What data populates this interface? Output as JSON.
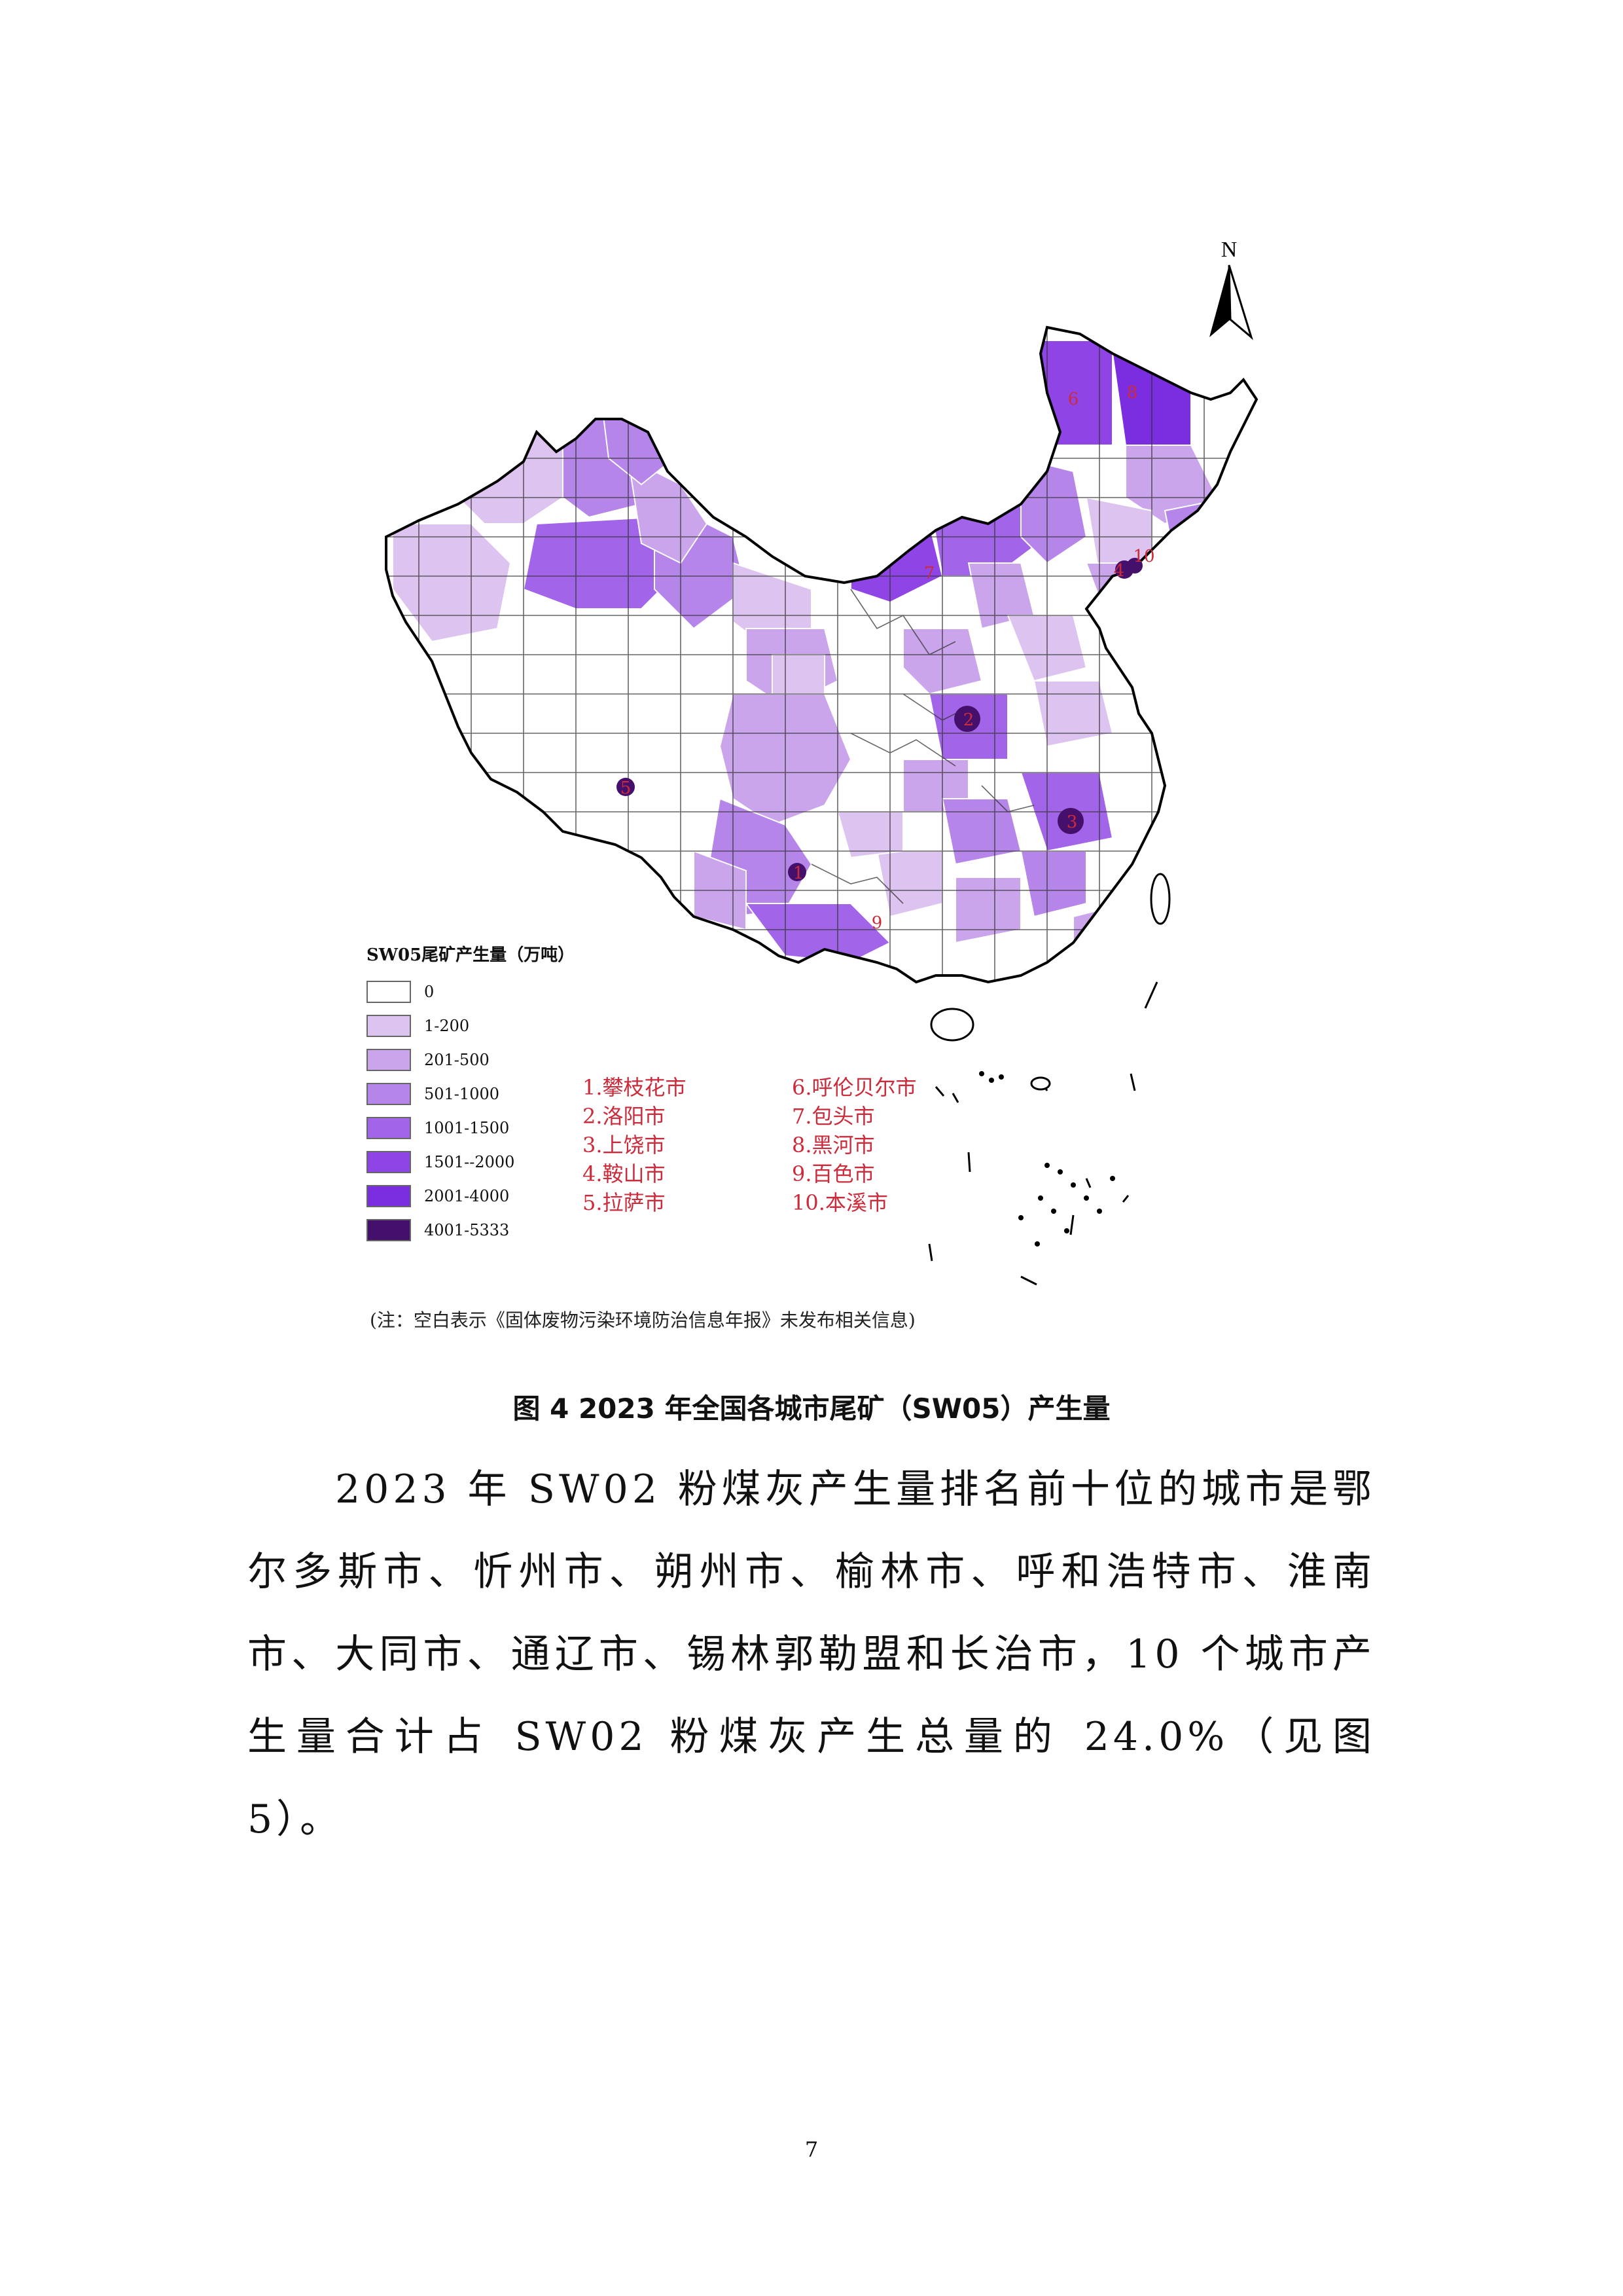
{
  "map": {
    "north_label": "N",
    "legend": {
      "title": "SW05尾矿产生量（万吨）",
      "items": [
        {
          "label": "0",
          "color": "#ffffff"
        },
        {
          "label": "1-200",
          "color": "#ddc3ef"
        },
        {
          "label": "201-500",
          "color": "#caa5ec"
        },
        {
          "label": "501-1000",
          "color": "#b585ea"
        },
        {
          "label": "1001-1500",
          "color": "#a264e8"
        },
        {
          "label": "1501--2000",
          "color": "#8f45e6"
        },
        {
          "label": "2001-4000",
          "color": "#7a2ee0"
        },
        {
          "label": "4001-5333",
          "color": "#44106b"
        }
      ]
    },
    "top_cities": [
      "1.攀枝花市",
      "6.呼伦贝尔市",
      "2.洛阳市",
      "7.包头市",
      "3.上饶市",
      "8.黑河市",
      "4.鞍山市",
      "9.百色市",
      "5.拉萨市",
      "10.本溪市"
    ],
    "marker_labels": [
      "1",
      "2",
      "3",
      "4",
      "5",
      "6",
      "7",
      "8",
      "9",
      "10"
    ],
    "note": "(注：空白表示《固体废物污染环境防治信息年报》未发布相关信息)"
  },
  "caption": "图 4 2023 年全国各城市尾矿（SW05）产生量",
  "paragraph": "2023 年 SW02 粉煤灰产生量排名前十位的城市是鄂尔多斯市、忻州市、朔州市、榆林市、呼和浩特市、淮南市、大同市、通辽市、锡林郭勒盟和长治市，10 个城市产生量合计占 SW02 粉煤灰产生总量的 24.0%（见图 5）。",
  "page_number": "7"
}
